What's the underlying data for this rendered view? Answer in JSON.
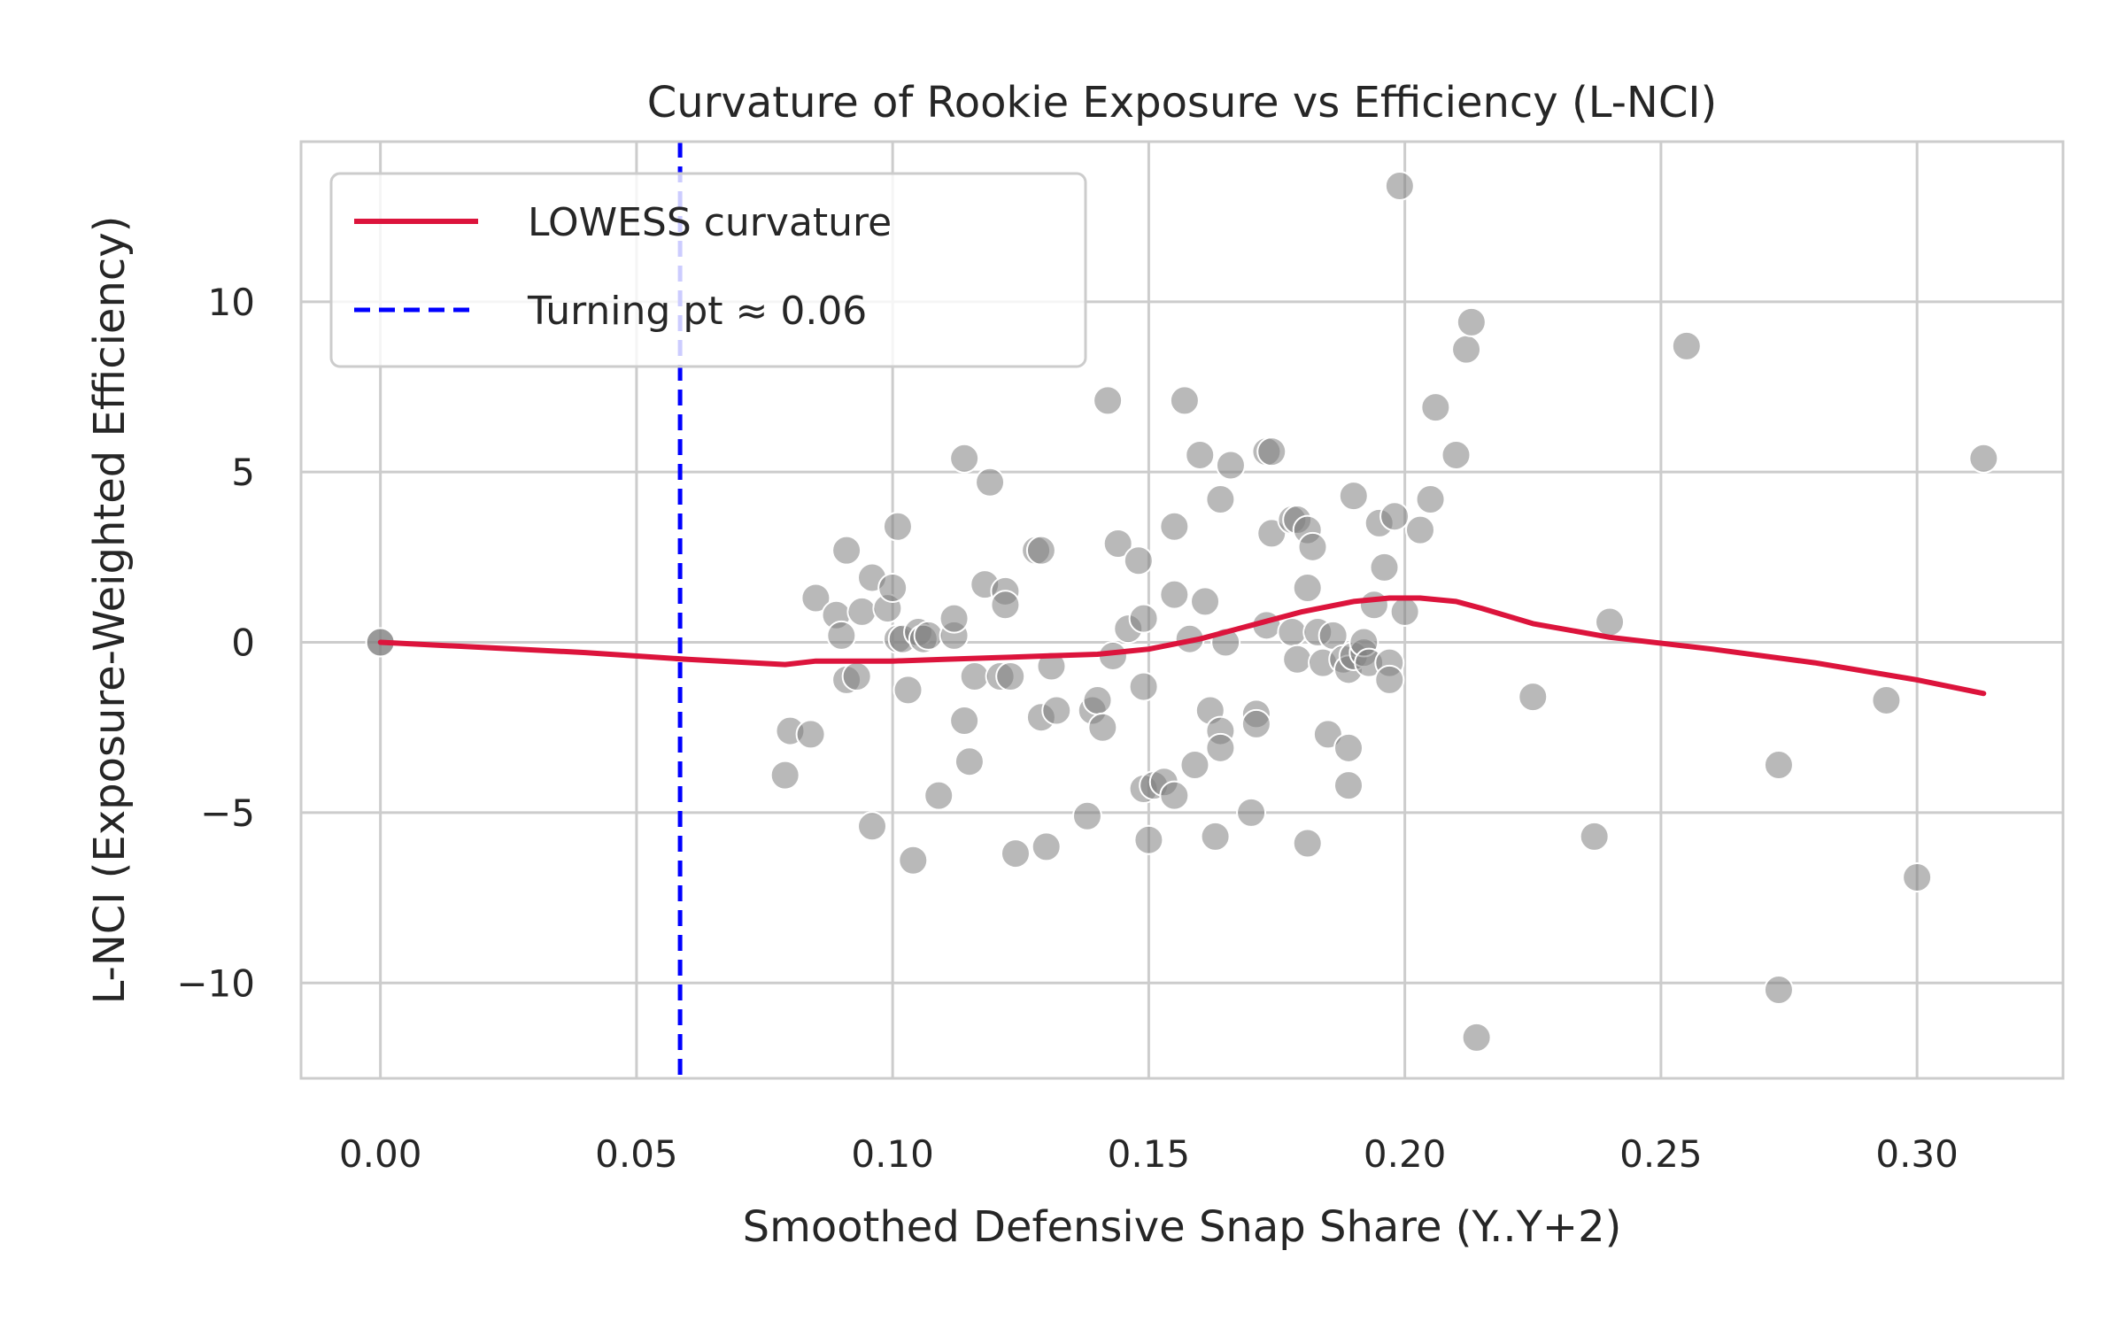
{
  "chart_data": {
    "type": "scatter",
    "title": "Curvature of Rookie Exposure vs Efficiency (L-NCI)",
    "xlabel": "Smoothed Defensive Snap Share (Y..Y+2)",
    "ylabel": "L-NCI (Exposure-Weighted Efficiency)",
    "xlim": [
      -0.0155,
      0.3285
    ],
    "ylim": [
      -12.8,
      14.7
    ],
    "x_ticks": [
      0.0,
      0.05,
      0.1,
      0.15,
      0.2,
      0.25,
      0.3
    ],
    "x_tick_labels": [
      "0.00",
      "0.05",
      "0.10",
      "0.15",
      "0.20",
      "0.25",
      "0.30"
    ],
    "y_ticks": [
      -10,
      -5,
      0,
      5,
      10
    ],
    "y_tick_labels": [
      "−10",
      "−5",
      "0",
      "5",
      "10"
    ],
    "grid": true,
    "legend_position": "top-left",
    "colors": {
      "scatter": "#808080",
      "lowess": "#dc143c",
      "turning": "#0000ff",
      "grid": "#cccccc",
      "spine": "#cccccc",
      "text": "#262626"
    },
    "scatter_points": [
      [
        0.0,
        0.0
      ],
      [
        0.0,
        0.0
      ],
      [
        0.079,
        -3.9
      ],
      [
        0.08,
        -2.6
      ],
      [
        0.084,
        -2.7
      ],
      [
        0.085,
        1.3
      ],
      [
        0.089,
        0.8
      ],
      [
        0.09,
        0.2
      ],
      [
        0.091,
        2.7
      ],
      [
        0.091,
        -1.1
      ],
      [
        0.093,
        -1.0
      ],
      [
        0.094,
        0.9
      ],
      [
        0.096,
        1.9
      ],
      [
        0.096,
        -5.4
      ],
      [
        0.099,
        1.0
      ],
      [
        0.1,
        1.6
      ],
      [
        0.101,
        3.4
      ],
      [
        0.101,
        0.1
      ],
      [
        0.102,
        0.1
      ],
      [
        0.103,
        -1.4
      ],
      [
        0.104,
        -6.4
      ],
      [
        0.105,
        0.3
      ],
      [
        0.106,
        0.1
      ],
      [
        0.107,
        0.2
      ],
      [
        0.109,
        -4.5
      ],
      [
        0.112,
        0.2
      ],
      [
        0.112,
        0.7
      ],
      [
        0.114,
        -2.3
      ],
      [
        0.114,
        5.4
      ],
      [
        0.115,
        -3.5
      ],
      [
        0.116,
        -1.0
      ],
      [
        0.118,
        1.7
      ],
      [
        0.119,
        4.7
      ],
      [
        0.121,
        -1.0
      ],
      [
        0.122,
        1.5
      ],
      [
        0.122,
        1.1
      ],
      [
        0.123,
        -1.0
      ],
      [
        0.124,
        -6.2
      ],
      [
        0.128,
        2.7
      ],
      [
        0.129,
        -2.2
      ],
      [
        0.129,
        2.7
      ],
      [
        0.13,
        -6.0
      ],
      [
        0.131,
        -0.7
      ],
      [
        0.132,
        -2.0
      ],
      [
        0.138,
        -5.1
      ],
      [
        0.139,
        -2.0
      ],
      [
        0.14,
        -1.7
      ],
      [
        0.141,
        -2.5
      ],
      [
        0.142,
        7.1
      ],
      [
        0.143,
        -0.4
      ],
      [
        0.144,
        2.9
      ],
      [
        0.146,
        0.4
      ],
      [
        0.148,
        2.4
      ],
      [
        0.149,
        -4.3
      ],
      [
        0.149,
        -1.3
      ],
      [
        0.149,
        0.7
      ],
      [
        0.15,
        -5.8
      ],
      [
        0.151,
        -4.2
      ],
      [
        0.153,
        -4.1
      ],
      [
        0.155,
        -4.5
      ],
      [
        0.155,
        3.4
      ],
      [
        0.155,
        1.4
      ],
      [
        0.157,
        7.1
      ],
      [
        0.158,
        0.1
      ],
      [
        0.159,
        -3.6
      ],
      [
        0.16,
        5.5
      ],
      [
        0.161,
        1.2
      ],
      [
        0.162,
        -2.0
      ],
      [
        0.163,
        -5.7
      ],
      [
        0.164,
        -2.6
      ],
      [
        0.164,
        4.2
      ],
      [
        0.164,
        -3.1
      ],
      [
        0.165,
        0.0
      ],
      [
        0.166,
        5.2
      ],
      [
        0.17,
        -5.0
      ],
      [
        0.171,
        -2.1
      ],
      [
        0.171,
        -2.4
      ],
      [
        0.173,
        0.5
      ],
      [
        0.173,
        5.6
      ],
      [
        0.174,
        5.6
      ],
      [
        0.174,
        3.2
      ],
      [
        0.178,
        3.6
      ],
      [
        0.178,
        0.3
      ],
      [
        0.179,
        3.6
      ],
      [
        0.179,
        -0.5
      ],
      [
        0.181,
        1.6
      ],
      [
        0.181,
        3.3
      ],
      [
        0.181,
        -5.9
      ],
      [
        0.182,
        2.8
      ],
      [
        0.183,
        0.3
      ],
      [
        0.184,
        -0.6
      ],
      [
        0.185,
        -2.7
      ],
      [
        0.186,
        0.2
      ],
      [
        0.188,
        -0.5
      ],
      [
        0.189,
        -0.8
      ],
      [
        0.189,
        -3.1
      ],
      [
        0.189,
        -4.2
      ],
      [
        0.19,
        4.3
      ],
      [
        0.19,
        -0.4
      ],
      [
        0.192,
        -0.3
      ],
      [
        0.192,
        0.0
      ],
      [
        0.193,
        -0.6
      ],
      [
        0.194,
        1.1
      ],
      [
        0.195,
        3.5
      ],
      [
        0.196,
        2.2
      ],
      [
        0.197,
        -0.6
      ],
      [
        0.197,
        -1.1
      ],
      [
        0.198,
        3.7
      ],
      [
        0.199,
        13.4
      ],
      [
        0.2,
        0.9
      ],
      [
        0.203,
        3.3
      ],
      [
        0.205,
        4.2
      ],
      [
        0.206,
        6.9
      ],
      [
        0.21,
        5.5
      ],
      [
        0.212,
        8.6
      ],
      [
        0.213,
        9.4
      ],
      [
        0.214,
        -11.6
      ],
      [
        0.225,
        -1.6
      ],
      [
        0.237,
        -5.7
      ],
      [
        0.24,
        0.6
      ],
      [
        0.255,
        8.7
      ],
      [
        0.273,
        -3.6
      ],
      [
        0.273,
        -10.2
      ],
      [
        0.294,
        -1.7
      ],
      [
        0.3,
        -6.9
      ],
      [
        0.313,
        5.4
      ]
    ],
    "series": [
      {
        "name": "LOWESS curvature",
        "type": "line",
        "x": [
          0.0,
          0.02,
          0.04,
          0.06,
          0.079,
          0.085,
          0.1,
          0.11,
          0.12,
          0.13,
          0.14,
          0.15,
          0.16,
          0.17,
          0.18,
          0.19,
          0.197,
          0.203,
          0.21,
          0.215,
          0.225,
          0.24,
          0.26,
          0.28,
          0.3,
          0.313
        ],
        "y": [
          0.0,
          -0.15,
          -0.3,
          -0.5,
          -0.65,
          -0.55,
          -0.55,
          -0.5,
          -0.45,
          -0.4,
          -0.35,
          -0.2,
          0.1,
          0.5,
          0.9,
          1.2,
          1.3,
          1.3,
          1.2,
          1.0,
          0.55,
          0.15,
          -0.2,
          -0.6,
          -1.1,
          -1.5
        ]
      },
      {
        "name": "Turning pt ≈ 0.06",
        "type": "vline",
        "x": 0.0585
      }
    ]
  }
}
